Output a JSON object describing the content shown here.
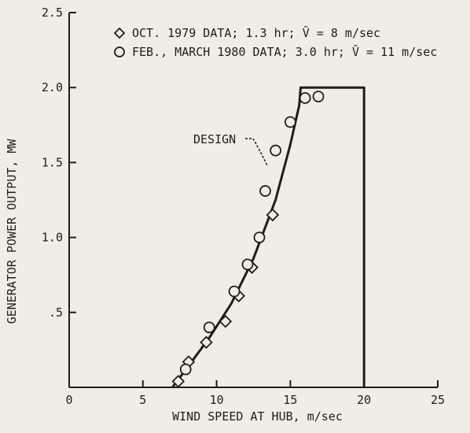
{
  "chart_data": {
    "type": "scatter",
    "xlabel": "WIND SPEED AT HUB, m/sec",
    "ylabel": "GENERATOR POWER OUTPUT, MW",
    "xlim": [
      0,
      25
    ],
    "ylim": [
      0,
      2.5
    ],
    "x_ticks": [
      0,
      5,
      10,
      15,
      20,
      25
    ],
    "x_tick_labels": [
      "0",
      "5",
      "10",
      "15",
      "20",
      "25"
    ],
    "y_ticks": [
      0,
      0.5,
      1.0,
      1.5,
      2.0,
      2.5
    ],
    "y_tick_labels": [
      "",
      ".5",
      "1.0",
      "1.5",
      "2.0",
      "2.5"
    ],
    "grid": false,
    "legend_position": "top",
    "series": [
      {
        "name": "OCT. 1979 DATA; 1.3 hr; V̄ = 8 m/sec",
        "marker": "diamond",
        "points": [
          [
            7.4,
            0.04
          ],
          [
            8.1,
            0.17
          ],
          [
            9.3,
            0.3
          ],
          [
            10.6,
            0.44
          ],
          [
            11.5,
            0.61
          ],
          [
            12.4,
            0.8
          ],
          [
            13.8,
            1.15
          ]
        ]
      },
      {
        "name": "FEB., MARCH 1980 DATA; 3.0 hr; V̄ = 11 m/sec",
        "marker": "circle",
        "points": [
          [
            7.9,
            0.12
          ],
          [
            9.5,
            0.4
          ],
          [
            11.2,
            0.64
          ],
          [
            12.1,
            0.82
          ],
          [
            12.9,
            1.0
          ],
          [
            13.3,
            1.31
          ],
          [
            14.0,
            1.58
          ],
          [
            15.0,
            1.77
          ],
          [
            16.0,
            1.93
          ],
          [
            16.9,
            1.94
          ]
        ]
      },
      {
        "name": "",
        "marker": "line",
        "points": [
          [
            7.0,
            0.0
          ],
          [
            8.0,
            0.13
          ],
          [
            9.5,
            0.33
          ],
          [
            11.0,
            0.56
          ],
          [
            12.5,
            0.86
          ],
          [
            14.0,
            1.25
          ],
          [
            15.0,
            1.62
          ],
          [
            15.6,
            1.88
          ],
          [
            15.7,
            2.0
          ],
          [
            20.0,
            2.0
          ],
          [
            20.0,
            0.0
          ]
        ]
      }
    ],
    "annotations": [
      {
        "text": "DESIGN",
        "x": 16.0,
        "y": 1.6
      }
    ]
  }
}
